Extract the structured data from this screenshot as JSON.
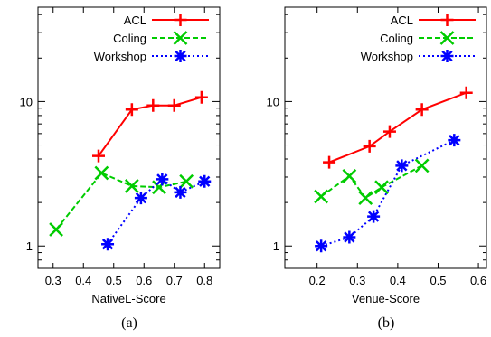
{
  "chart_data": [
    {
      "type": "line",
      "caption": "(a)",
      "xlabel": "NativeL-Score",
      "ylabel": "",
      "x_scale": "linear",
      "y_scale": "log",
      "xlim": [
        0.25,
        0.85
      ],
      "ylim": [
        0.7,
        45
      ],
      "x_ticks": [
        0.3,
        0.4,
        0.5,
        0.6,
        0.7,
        0.8
      ],
      "x_tick_labels": [
        "0.3",
        "0.4",
        "0.5",
        "0.6",
        "0.7",
        "0.8"
      ],
      "y_ticks": [
        1,
        10
      ],
      "y_tick_labels": [
        "1",
        "10"
      ],
      "grid": false,
      "legend_position": "top-right",
      "series": [
        {
          "name": "ACL",
          "color": "#ff0000",
          "marker": "plus",
          "dash": "solid",
          "x": [
            0.45,
            0.56,
            0.63,
            0.7,
            0.79
          ],
          "y": [
            4.2,
            8.8,
            9.4,
            9.4,
            10.7
          ]
        },
        {
          "name": "Coling",
          "color": "#00cc00",
          "marker": "x",
          "dash": "dashed",
          "x": [
            0.31,
            0.46,
            0.56,
            0.65,
            0.74
          ],
          "y": [
            1.3,
            3.2,
            2.6,
            2.55,
            2.8
          ]
        },
        {
          "name": "Workshop",
          "color": "#0000ff",
          "marker": "star",
          "dash": "dotted",
          "x": [
            0.48,
            0.59,
            0.66,
            0.72,
            0.8
          ],
          "y": [
            1.03,
            2.15,
            2.9,
            2.35,
            2.8
          ]
        }
      ]
    },
    {
      "type": "line",
      "caption": "(b)",
      "xlabel": "Venue-Score",
      "ylabel": "",
      "x_scale": "linear",
      "y_scale": "log",
      "xlim": [
        0.12,
        0.62
      ],
      "ylim": [
        0.7,
        45
      ],
      "x_ticks": [
        0.2,
        0.3,
        0.4,
        0.5,
        0.6
      ],
      "x_tick_labels": [
        "0.2",
        "0.3",
        "0.4",
        "0.5",
        "0.6"
      ],
      "y_ticks": [
        1,
        10
      ],
      "y_tick_labels": [
        "1",
        "10"
      ],
      "grid": false,
      "legend_position": "top-right",
      "series": [
        {
          "name": "ACL",
          "color": "#ff0000",
          "marker": "plus",
          "dash": "solid",
          "x": [
            0.23,
            0.33,
            0.38,
            0.46,
            0.57
          ],
          "y": [
            3.8,
            4.9,
            6.2,
            8.8,
            11.5
          ]
        },
        {
          "name": "Coling",
          "color": "#00cc00",
          "marker": "x",
          "dash": "dashed",
          "x": [
            0.21,
            0.28,
            0.32,
            0.36,
            0.46
          ],
          "y": [
            2.2,
            3.05,
            2.15,
            2.55,
            3.6
          ]
        },
        {
          "name": "Workshop",
          "color": "#0000ff",
          "marker": "star",
          "dash": "dotted",
          "x": [
            0.21,
            0.28,
            0.34,
            0.41,
            0.54
          ],
          "y": [
            1.0,
            1.15,
            1.6,
            3.6,
            5.4
          ]
        }
      ]
    }
  ]
}
